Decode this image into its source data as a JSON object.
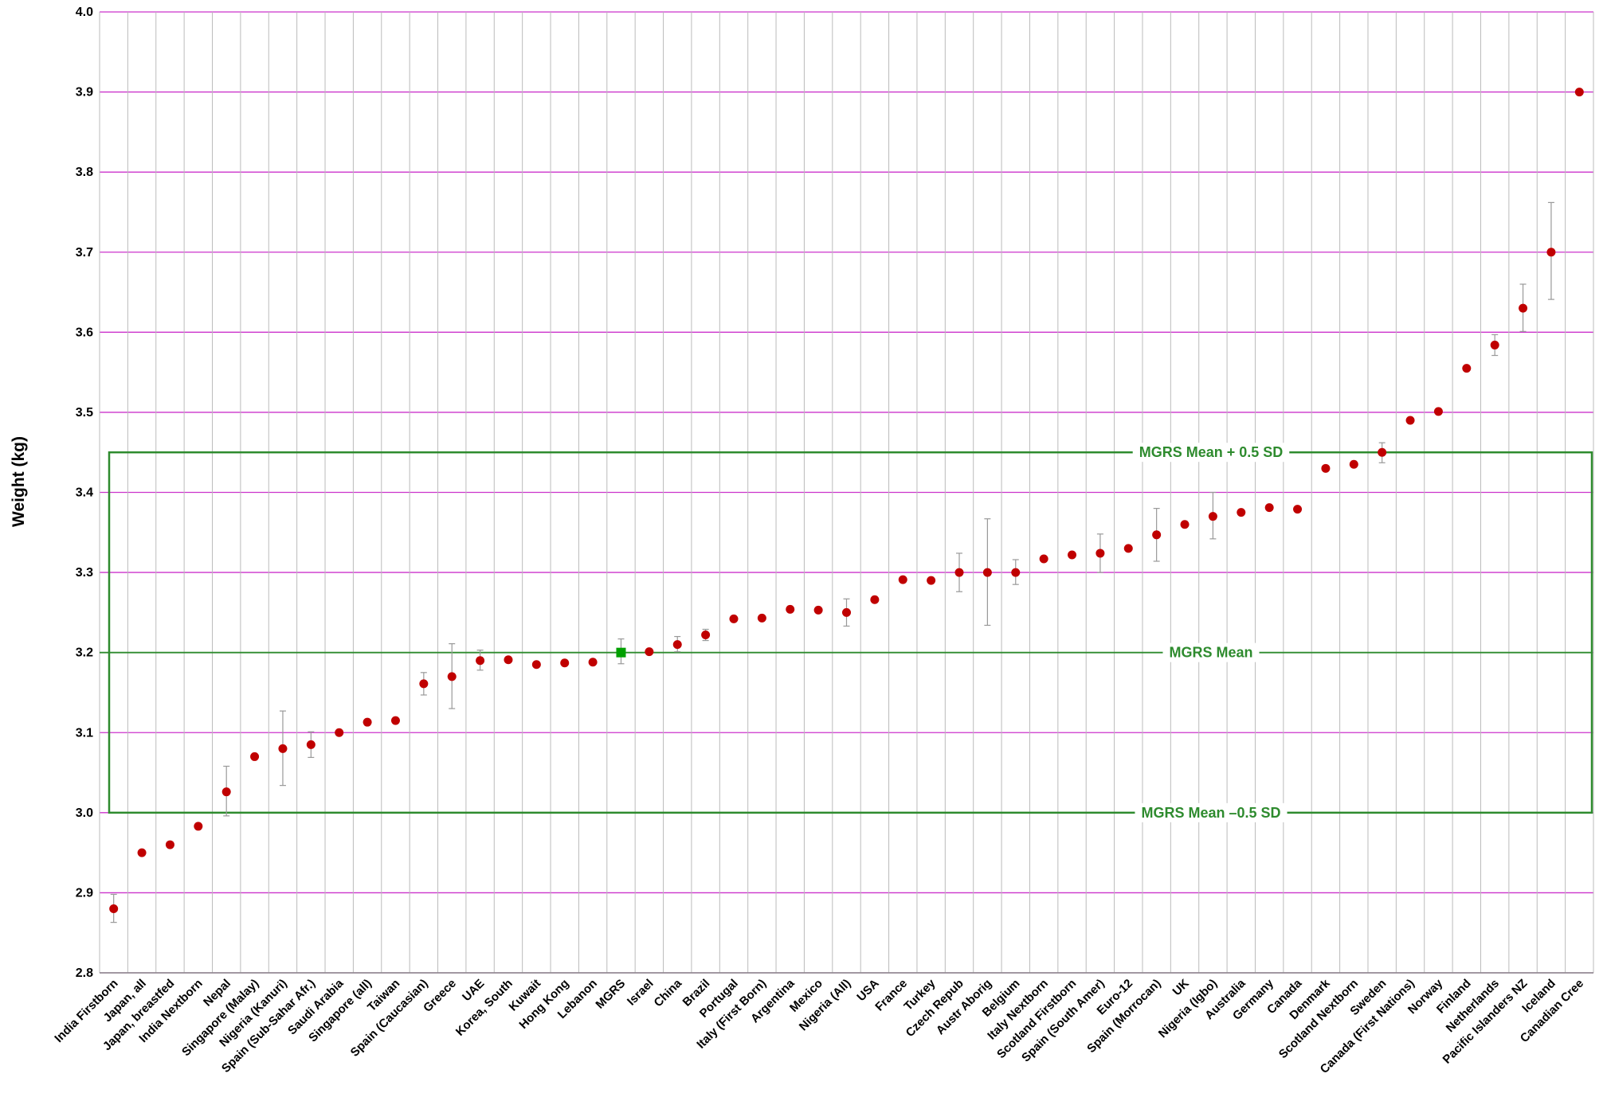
{
  "chart_data": {
    "type": "scatter",
    "title": "",
    "xlabel": "",
    "ylabel": "Weight (kg)",
    "ylim": [
      2.8,
      4.0
    ],
    "yticks": [
      "2.8",
      "2.9",
      "3.0",
      "3.1",
      "3.2",
      "3.3",
      "3.4",
      "3.5",
      "3.6",
      "3.7",
      "3.8",
      "3.9",
      "4.0"
    ],
    "grid": true,
    "legend": "none",
    "colors": {
      "point": "#c00000",
      "highlight_point": "#00a000",
      "reference": "#2e8b2e",
      "gridline": "#cc33cc",
      "category_line": "#bbbbbb",
      "errorbar": "#999999",
      "ylabel": "#ff66cc"
    },
    "reference_lines": [
      {
        "label": "MGRS Mean + 0.5 SD",
        "y": 3.45
      },
      {
        "label": "MGRS Mean",
        "y": 3.2
      },
      {
        "label": "MGRS Mean –0.5 SD",
        "y": 3.0
      }
    ],
    "categories": [
      "India Firstborn",
      "Japan, all",
      "Japan, breastfed",
      "India Nextborn",
      "Nepal",
      "Singapore (Malay)",
      "Nigeria (Kanuri)",
      "Spain (Sub-Sahar Afr.)",
      "Saudi Arabia",
      "Singapore (all)",
      "Taiwan",
      "Spain (Caucasian)",
      "Greece",
      "UAE",
      "Korea, South",
      "Kuwait",
      "Hong Kong",
      "Lebanon",
      "MGRS",
      "Israel",
      "China",
      "Brazil",
      "Portugal",
      "Italy (First Born)",
      "Argentina",
      "Mexico",
      "Nigeria (All)",
      "USA",
      "France",
      "Turkey",
      "Czech Repub",
      "Austr Aborig",
      "Belgium",
      "Italy Nextborn",
      "Scotland Firstborn",
      "Spain (South Amer)",
      "Euro-12",
      "Spain (Morrocan)",
      "UK",
      "Nigeria (Igbo)",
      "Australia",
      "Germany",
      "Canada",
      "Denmark",
      "Scotland Nextborn",
      "Sweden",
      "Canada (First Nations)",
      "Norway",
      "Finland",
      "Netherlands",
      "Pacific Islanders NZ",
      "Iceland",
      "Canadian Cree"
    ],
    "highlight": "MGRS",
    "series": [
      {
        "values": [
          2.88,
          2.95,
          2.96,
          2.983,
          3.026,
          3.07,
          3.08,
          3.085,
          3.1,
          3.113,
          3.115,
          3.161,
          3.17,
          3.19,
          3.191,
          3.185,
          3.187,
          3.188,
          3.2,
          3.201,
          3.21,
          3.222,
          3.242,
          3.243,
          3.254,
          3.253,
          3.25,
          3.266,
          3.291,
          3.29,
          3.3,
          3.3,
          3.3,
          3.317,
          3.322,
          3.324,
          3.33,
          3.347,
          3.36,
          3.37,
          3.375,
          3.381,
          3.379,
          3.43,
          3.435,
          3.45,
          3.49,
          3.501,
          3.555,
          3.584,
          3.63,
          3.7,
          3.9
        ],
        "errors": [
          [
            2.863,
            2.898
          ],
          null,
          null,
          null,
          [
            2.996,
            3.058
          ],
          null,
          [
            3.034,
            3.127
          ],
          [
            3.069,
            3.101
          ],
          null,
          null,
          null,
          [
            3.147,
            3.175
          ],
          [
            3.13,
            3.211
          ],
          [
            3.178,
            3.203
          ],
          null,
          null,
          null,
          null,
          [
            3.186,
            3.217
          ],
          null,
          [
            3.201,
            3.22
          ],
          [
            3.215,
            3.229
          ],
          null,
          null,
          null,
          null,
          [
            3.233,
            3.267
          ],
          null,
          null,
          null,
          [
            3.276,
            3.324
          ],
          [
            3.234,
            3.367
          ],
          [
            3.285,
            3.316
          ],
          null,
          null,
          [
            3.3,
            3.348
          ],
          null,
          [
            3.314,
            3.38
          ],
          null,
          [
            3.342,
            3.4
          ],
          null,
          null,
          null,
          null,
          null,
          [
            3.437,
            3.462
          ],
          null,
          null,
          null,
          [
            3.571,
            3.597
          ],
          [
            3.601,
            3.66
          ],
          [
            3.641,
            3.762
          ],
          null
        ]
      }
    ]
  }
}
